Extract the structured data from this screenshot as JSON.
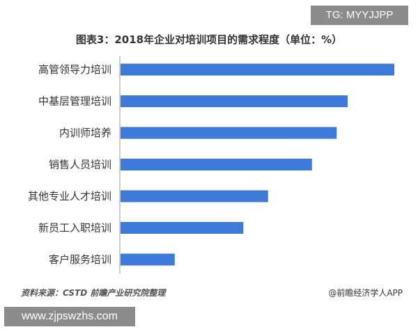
{
  "watermark_tag": "TG: MYYJJPP",
  "site_url": "www.zjpswzhs.com",
  "source_text": "资料来源：CSTD 前瞻产业研究院整理",
  "brand_text": "@前瞻经济学人APP",
  "colors": {
    "bar": "#3d7ad9",
    "axis": "#999999"
  },
  "chart_data": {
    "type": "bar",
    "orientation": "horizontal",
    "title": "图表3：2018年企业对培训项目的需求程度（单位：%）",
    "categories": [
      "高管领导力培训",
      "中基层管理培训",
      "内训师培养",
      "销售人员培训",
      "其他专业人才培训",
      "新员工入职培训",
      "客户服务培训"
    ],
    "values": [
      100,
      83,
      79,
      70,
      54,
      45,
      20
    ],
    "xlim": [
      0,
      100
    ],
    "grid": false,
    "data_labels": false
  }
}
